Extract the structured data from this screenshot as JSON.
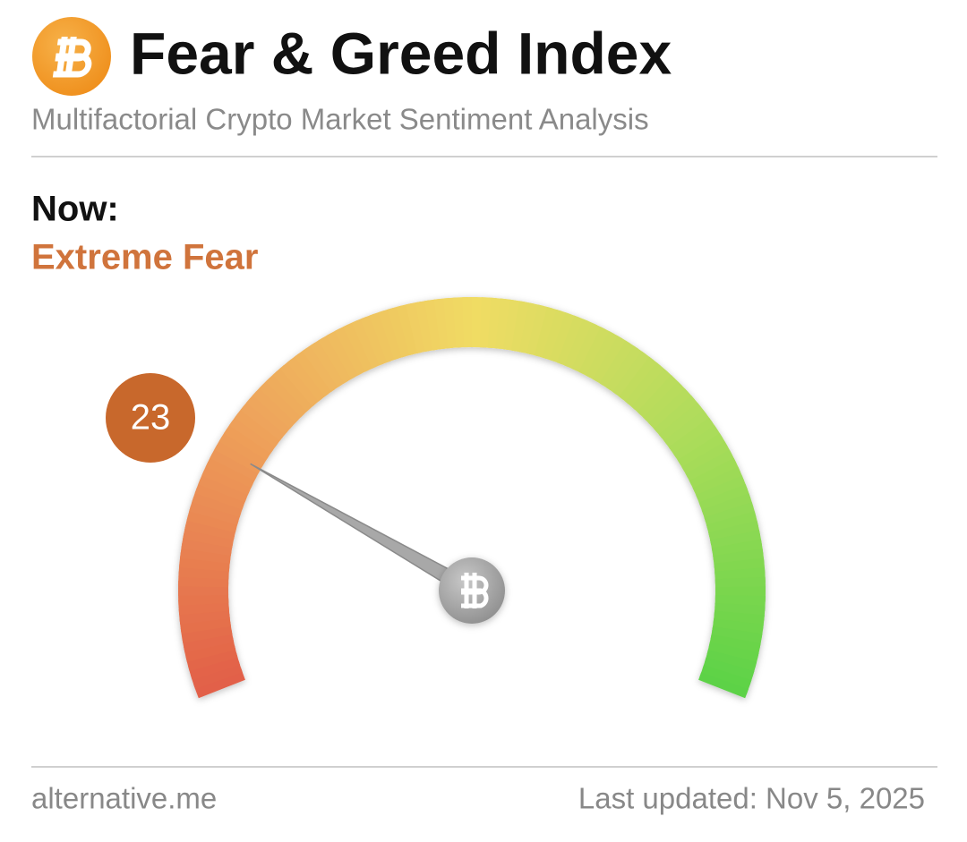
{
  "chart_data": {
    "type": "gauge",
    "title": "Fear & Greed Index",
    "subtitle": "Multifactorial Crypto Market Sentiment Analysis",
    "now_label": "Now:",
    "classification": "Extreme Fear",
    "value": 23,
    "ylim": [
      0,
      100
    ],
    "source": "alternative.me",
    "updated": "Last updated: Nov 5, 2025"
  }
}
